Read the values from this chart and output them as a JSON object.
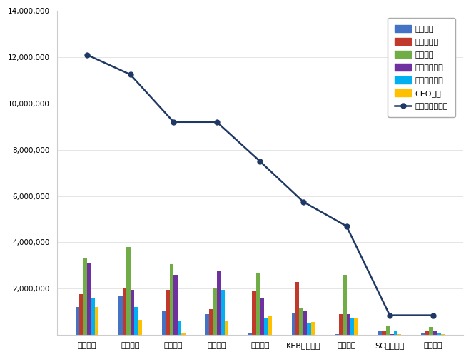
{
  "banks": [
    "우리은행",
    "국민은행",
    "신한은행",
    "기업은행",
    "농협은행",
    "KEB하나은행",
    "산업은행",
    "SC제일은행",
    "씨티은행"
  ],
  "참여지수": [
    1200000,
    1700000,
    1050000,
    900000,
    100000,
    950000,
    50000,
    150000,
    100000
  ],
  "미디어지수": [
    1750000,
    2050000,
    1950000,
    1100000,
    1900000,
    2300000,
    900000,
    150000,
    150000
  ],
  "소통지수": [
    3300000,
    3800000,
    3050000,
    2000000,
    2650000,
    1150000,
    2600000,
    400000,
    350000
  ],
  "커뮤니티지수": [
    3100000,
    1950000,
    2600000,
    2750000,
    1600000,
    1050000,
    900000,
    50000,
    150000
  ],
  "사회공헌지수": [
    1600000,
    1200000,
    600000,
    1950000,
    700000,
    500000,
    700000,
    150000,
    100000
  ],
  "CEO지수": [
    1200000,
    650000,
    100000,
    600000,
    800000,
    550000,
    750000,
    50000,
    50000
  ],
  "브랜드평판지수": [
    12100000,
    11250000,
    9200000,
    9200000,
    7500000,
    5750000,
    4700000,
    850000,
    850000
  ],
  "bar_colors": {
    "참여지수": "#4472c4",
    "미디어지수": "#c0392b",
    "소통지수": "#70ad47",
    "커뮤니티지수": "#7030a0",
    "사회공헌지수": "#00b0f0",
    "CEO지수": "#ffc000"
  },
  "line_color": "#1f3864",
  "ylim": [
    0,
    14000000
  ],
  "yticks": [
    0,
    2000000,
    4000000,
    6000000,
    8000000,
    10000000,
    12000000,
    14000000
  ],
  "bar_series": [
    "참여지수",
    "미디어지수",
    "소통지수",
    "커뮤니티지수",
    "사회공헌지수",
    "CEO지수"
  ],
  "legend_labels": [
    "참여지수",
    "미디어지수",
    "소통지수",
    "커뮤니티지수",
    "사회공헌지수",
    "CEO지수",
    "브랜드평판지수"
  ],
  "figsize": [
    6.6,
    5.0
  ],
  "dpi": 100
}
